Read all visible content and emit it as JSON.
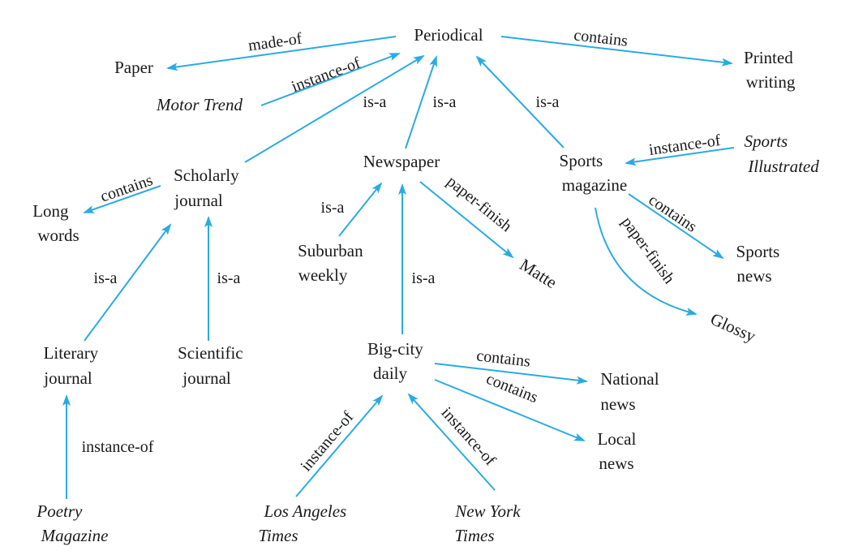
{
  "nodes": {
    "periodical": [
      "Periodical"
    ],
    "paper": [
      "Paper"
    ],
    "printed_writing": [
      "Printed",
      "writing"
    ],
    "motor_trend": [
      "Motor Trend"
    ],
    "scholarly_journal": [
      "Scholarly",
      "journal"
    ],
    "newspaper": [
      "Newspaper"
    ],
    "sports_magazine": [
      "Sports",
      "magazine"
    ],
    "sports_illustrated": [
      "Sports",
      "Illustrated"
    ],
    "long_words": [
      "Long",
      "words"
    ],
    "suburban_weekly": [
      "Suburban",
      "weekly"
    ],
    "matte": [
      "Matte"
    ],
    "sports_news": [
      "Sports",
      "news"
    ],
    "glossy": [
      "Glossy"
    ],
    "literary_journal": [
      "Literary",
      "journal"
    ],
    "scientific_journal": [
      "Scientific",
      "journal"
    ],
    "big_city_daily": [
      "Big-city",
      "daily"
    ],
    "national_news": [
      "National",
      "news"
    ],
    "local_news": [
      "Local",
      "news"
    ],
    "poetry_magazine": [
      "Poetry",
      "Magazine"
    ],
    "la_times": [
      "Los Angeles",
      "Times"
    ],
    "ny_times": [
      "New York",
      "Times"
    ]
  },
  "relations": {
    "made_of": "made-of",
    "contains": "contains",
    "instance_of": "instance-of",
    "is_a": "is-a",
    "paper_finish": "paper-finish"
  },
  "edges": [
    {
      "from": "periodical",
      "to": "paper",
      "label": "made-of"
    },
    {
      "from": "periodical",
      "to": "printed_writing",
      "label": "contains"
    },
    {
      "from": "motor_trend",
      "to": "periodical",
      "label": "instance-of"
    },
    {
      "from": "scholarly_journal",
      "to": "periodical",
      "label": "is-a"
    },
    {
      "from": "newspaper",
      "to": "periodical",
      "label": "is-a"
    },
    {
      "from": "sports_magazine",
      "to": "periodical",
      "label": "is-a"
    },
    {
      "from": "sports_illustrated",
      "to": "sports_magazine",
      "label": "instance-of"
    },
    {
      "from": "scholarly_journal",
      "to": "long_words",
      "label": "contains"
    },
    {
      "from": "suburban_weekly",
      "to": "newspaper",
      "label": "is-a"
    },
    {
      "from": "newspaper",
      "to": "matte",
      "label": "paper-finish"
    },
    {
      "from": "big_city_daily",
      "to": "newspaper",
      "label": "is-a"
    },
    {
      "from": "sports_magazine",
      "to": "sports_news",
      "label": "contains"
    },
    {
      "from": "sports_magazine",
      "to": "glossy",
      "label": "paper-finish"
    },
    {
      "from": "literary_journal",
      "to": "scholarly_journal",
      "label": "is-a"
    },
    {
      "from": "scientific_journal",
      "to": "scholarly_journal",
      "label": "is-a"
    },
    {
      "from": "big_city_daily",
      "to": "national_news",
      "label": "contains"
    },
    {
      "from": "big_city_daily",
      "to": "local_news",
      "label": "contains"
    },
    {
      "from": "poetry_magazine",
      "to": "literary_journal",
      "label": "instance-of"
    },
    {
      "from": "la_times",
      "to": "big_city_daily",
      "label": "instance-of"
    },
    {
      "from": "ny_times",
      "to": "big_city_daily",
      "label": "instance-of"
    }
  ],
  "colors": {
    "edge": "#29abe2",
    "text": "#1a1a1a",
    "background": "#ffffff"
  }
}
